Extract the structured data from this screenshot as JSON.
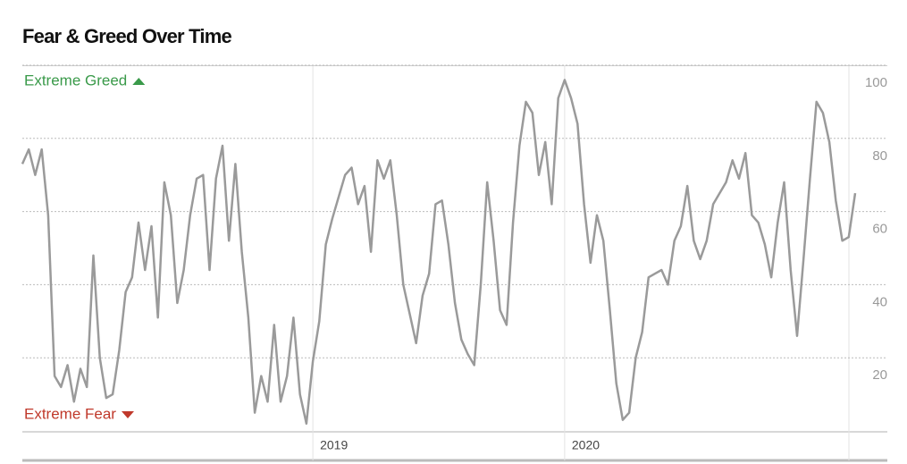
{
  "chart_data": {
    "type": "line",
    "title": "Fear & Greed Over Time",
    "annotations": [
      {
        "text": "Extreme Greed",
        "color": "#3a9a4a"
      },
      {
        "text": "Extreme Fear",
        "color": "#c0392b"
      }
    ],
    "categories": [
      null,
      null,
      null,
      null,
      null,
      null,
      null,
      null,
      null,
      null,
      null,
      null,
      null,
      null,
      null,
      null,
      null,
      null,
      null,
      null,
      null,
      null,
      null,
      null,
      null,
      null,
      null,
      null,
      null,
      null,
      null,
      null,
      null,
      null,
      null,
      null,
      null,
      null,
      null,
      null,
      null,
      null,
      null,
      null,
      null,
      "2019",
      null,
      null,
      null,
      null,
      null,
      null,
      null,
      null,
      null,
      null,
      null,
      null,
      null,
      null,
      null,
      null,
      null,
      null,
      null,
      null,
      null,
      null,
      null,
      null,
      null,
      null,
      null,
      null,
      null,
      null,
      null,
      null,
      null,
      null,
      null,
      null,
      null,
      null,
      "2020",
      null,
      null,
      null,
      null,
      null,
      null,
      null,
      null,
      null,
      null,
      null,
      null,
      null,
      null,
      null,
      null,
      null,
      null,
      null,
      null,
      null,
      null,
      null,
      null,
      null,
      null,
      null,
      null,
      null,
      null,
      null,
      null,
      null,
      null,
      null,
      null,
      null,
      null,
      null,
      null,
      null,
      null,
      null,
      null,
      null
    ],
    "series": [
      {
        "name": "Fear & Greed",
        "color": "#9a9a9a",
        "values": [
          73,
          77,
          70,
          77,
          59,
          15,
          12,
          18,
          8,
          17,
          12,
          48,
          20,
          9,
          10,
          22,
          38,
          42,
          57,
          44,
          56,
          31,
          68,
          59,
          35,
          44,
          59,
          69,
          70,
          44,
          69,
          78,
          52,
          73,
          49,
          31,
          5,
          15,
          8,
          29,
          8,
          15,
          31,
          10,
          2,
          19,
          30,
          51,
          58,
          64,
          70,
          72,
          62,
          67,
          49,
          74,
          69,
          74,
          59,
          40,
          32,
          24,
          37,
          43,
          62,
          63,
          51,
          35,
          25,
          21,
          18,
          40,
          68,
          52,
          33,
          29,
          57,
          78,
          90,
          87,
          70,
          79,
          62,
          91,
          96,
          91,
          84,
          62,
          46,
          59,
          52,
          33,
          13,
          3,
          5,
          20,
          27,
          42,
          43,
          44,
          40,
          52,
          56,
          67,
          52,
          47,
          52,
          62,
          65,
          68,
          74,
          69,
          76,
          59,
          57,
          51,
          42,
          57,
          68,
          44,
          26,
          47,
          69,
          90,
          87,
          79,
          63,
          52,
          53,
          65
        ]
      }
    ],
    "ylim": [
      0,
      100
    ],
    "yticks": [
      20,
      40,
      60,
      80,
      100
    ],
    "grid": true
  }
}
